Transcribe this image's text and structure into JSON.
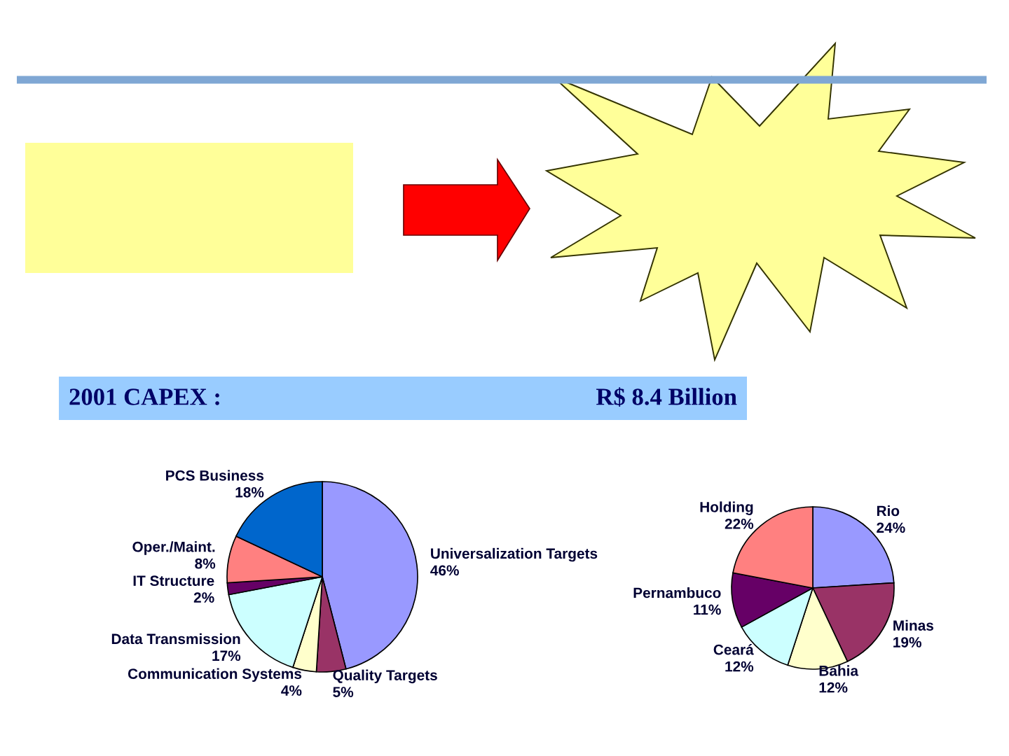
{
  "chart_data": [
    {
      "type": "pie",
      "title": "2001 CAPEX :",
      "annotations": [
        "R$ 8.4 Billion"
      ],
      "categories": [
        "Universalization Targets",
        "Quality Targets",
        "Communication Systems",
        "Data Transmission",
        "IT Structure",
        "Oper./Maint.",
        "PCS Business"
      ],
      "values": [
        46,
        5,
        4,
        17,
        2,
        8,
        18
      ],
      "value_labels": [
        "46%",
        "5%",
        "4%",
        "17%",
        "2%",
        "8%",
        "18%"
      ],
      "colors": [
        "#9999ff",
        "#993366",
        "#ffffcc",
        "#ccffff",
        "#660066",
        "#ff8080",
        "#0066cc"
      ]
    },
    {
      "type": "pie",
      "categories": [
        "Rio",
        "Minas",
        "Bahia",
        "Ceará",
        "Pernambuco",
        "Holding"
      ],
      "values": [
        24,
        19,
        12,
        12,
        11,
        22
      ],
      "value_labels": [
        "24%",
        "19%",
        "12%",
        "12%",
        "11%",
        "22%"
      ],
      "colors": [
        "#9999ff",
        "#993366",
        "#ffffcc",
        "#ccffff",
        "#660066",
        "#ff8080"
      ]
    }
  ]
}
